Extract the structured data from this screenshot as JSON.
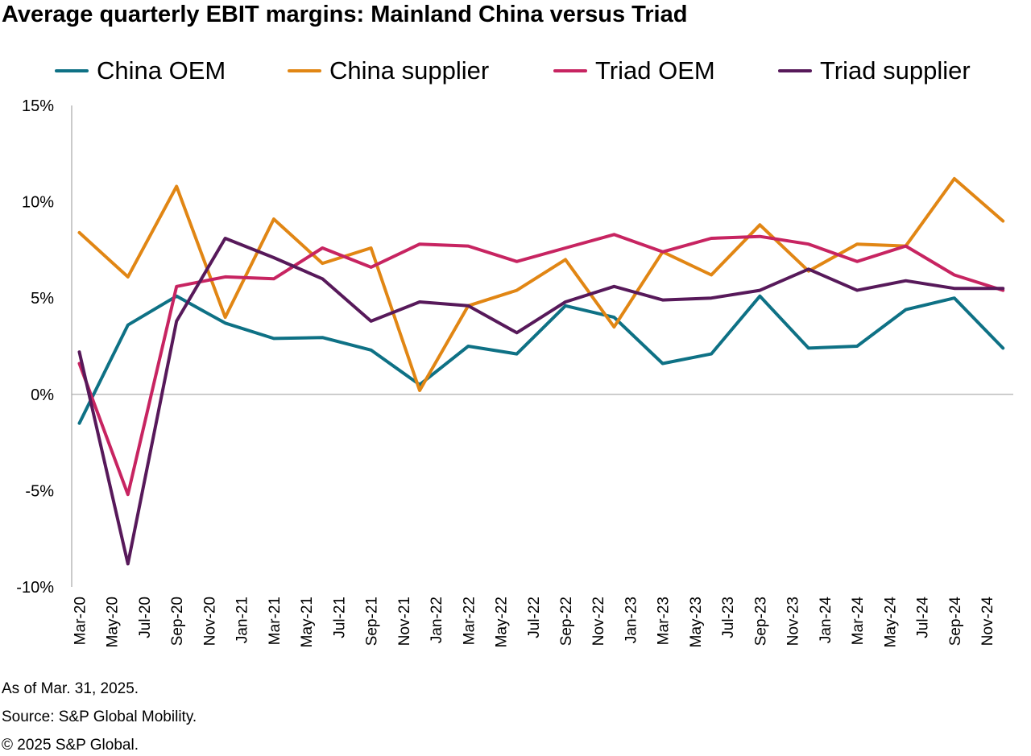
{
  "title": "Average quarterly EBIT margins: Mainland China versus Triad",
  "footnotes": {
    "as_of": "As of Mar. 31, 2025.",
    "source": "Source: S&P Global Mobility.",
    "copyright": "© 2025 S&P Global."
  },
  "chart_data": {
    "type": "line",
    "title": "Average quarterly EBIT margins: Mainland China versus Triad",
    "xlabel": "",
    "ylabel": "",
    "ylim": [
      -10,
      15
    ],
    "y_ticks": [
      15,
      10,
      5,
      0,
      -5,
      -10
    ],
    "y_tick_labels": [
      "15%",
      "10%",
      "5%",
      "0%",
      "-5%",
      "-10%"
    ],
    "grid": false,
    "legend_position": "top",
    "categories": [
      "Mar-20",
      "Jun-20",
      "Sep-20",
      "Dec-20",
      "Mar-21",
      "Jun-21",
      "Sep-21",
      "Dec-21",
      "Mar-22",
      "Jun-22",
      "Sep-22",
      "Dec-22",
      "Mar-23",
      "Jun-23",
      "Sep-23",
      "Dec-23",
      "Mar-24",
      "Jun-24",
      "Sep-24",
      "Dec-24"
    ],
    "x_tick_labels": [
      "Mar-20",
      "May-20",
      "Jul-20",
      "Sep-20",
      "Nov-20",
      "Jan-21",
      "Mar-21",
      "May-21",
      "Jul-21",
      "Sep-21",
      "Nov-21",
      "Jan-22",
      "Mar-22",
      "May-22",
      "Jul-22",
      "Sep-22",
      "Nov-22",
      "Jan-23",
      "Mar-23",
      "May-23",
      "Jul-23",
      "Sep-23",
      "Nov-23",
      "Jan-24",
      "Mar-24",
      "May-24",
      "Jul-24",
      "Sep-24",
      "Nov-24"
    ],
    "series": [
      {
        "name": "China OEM",
        "color": "#0e7185",
        "values": [
          -1.5,
          3.6,
          5.1,
          3.7,
          2.9,
          2.95,
          2.3,
          0.5,
          2.5,
          2.1,
          4.6,
          4.0,
          1.6,
          2.1,
          5.1,
          2.4,
          2.5,
          4.4,
          5.0,
          2.4
        ]
      },
      {
        "name": "China supplier",
        "color": "#e18614",
        "values": [
          8.4,
          6.1,
          10.8,
          4.0,
          9.1,
          6.8,
          7.6,
          0.2,
          4.6,
          5.4,
          7.0,
          3.5,
          7.4,
          6.2,
          8.8,
          6.4,
          7.8,
          7.7,
          11.2,
          9.0
        ]
      },
      {
        "name": "Triad OEM",
        "color": "#c72461",
        "values": [
          1.6,
          -5.2,
          5.6,
          6.1,
          6.0,
          7.6,
          6.6,
          7.8,
          7.7,
          6.9,
          7.6,
          8.3,
          7.4,
          8.1,
          8.2,
          7.8,
          6.9,
          7.7,
          6.2,
          5.4
        ]
      },
      {
        "name": "Triad supplier",
        "color": "#57195a",
        "values": [
          2.2,
          -8.8,
          3.8,
          8.1,
          7.1,
          6.0,
          3.8,
          4.8,
          4.6,
          3.2,
          4.8,
          5.6,
          4.9,
          5.0,
          5.4,
          6.5,
          5.4,
          5.9,
          5.5,
          5.5
        ]
      }
    ]
  }
}
